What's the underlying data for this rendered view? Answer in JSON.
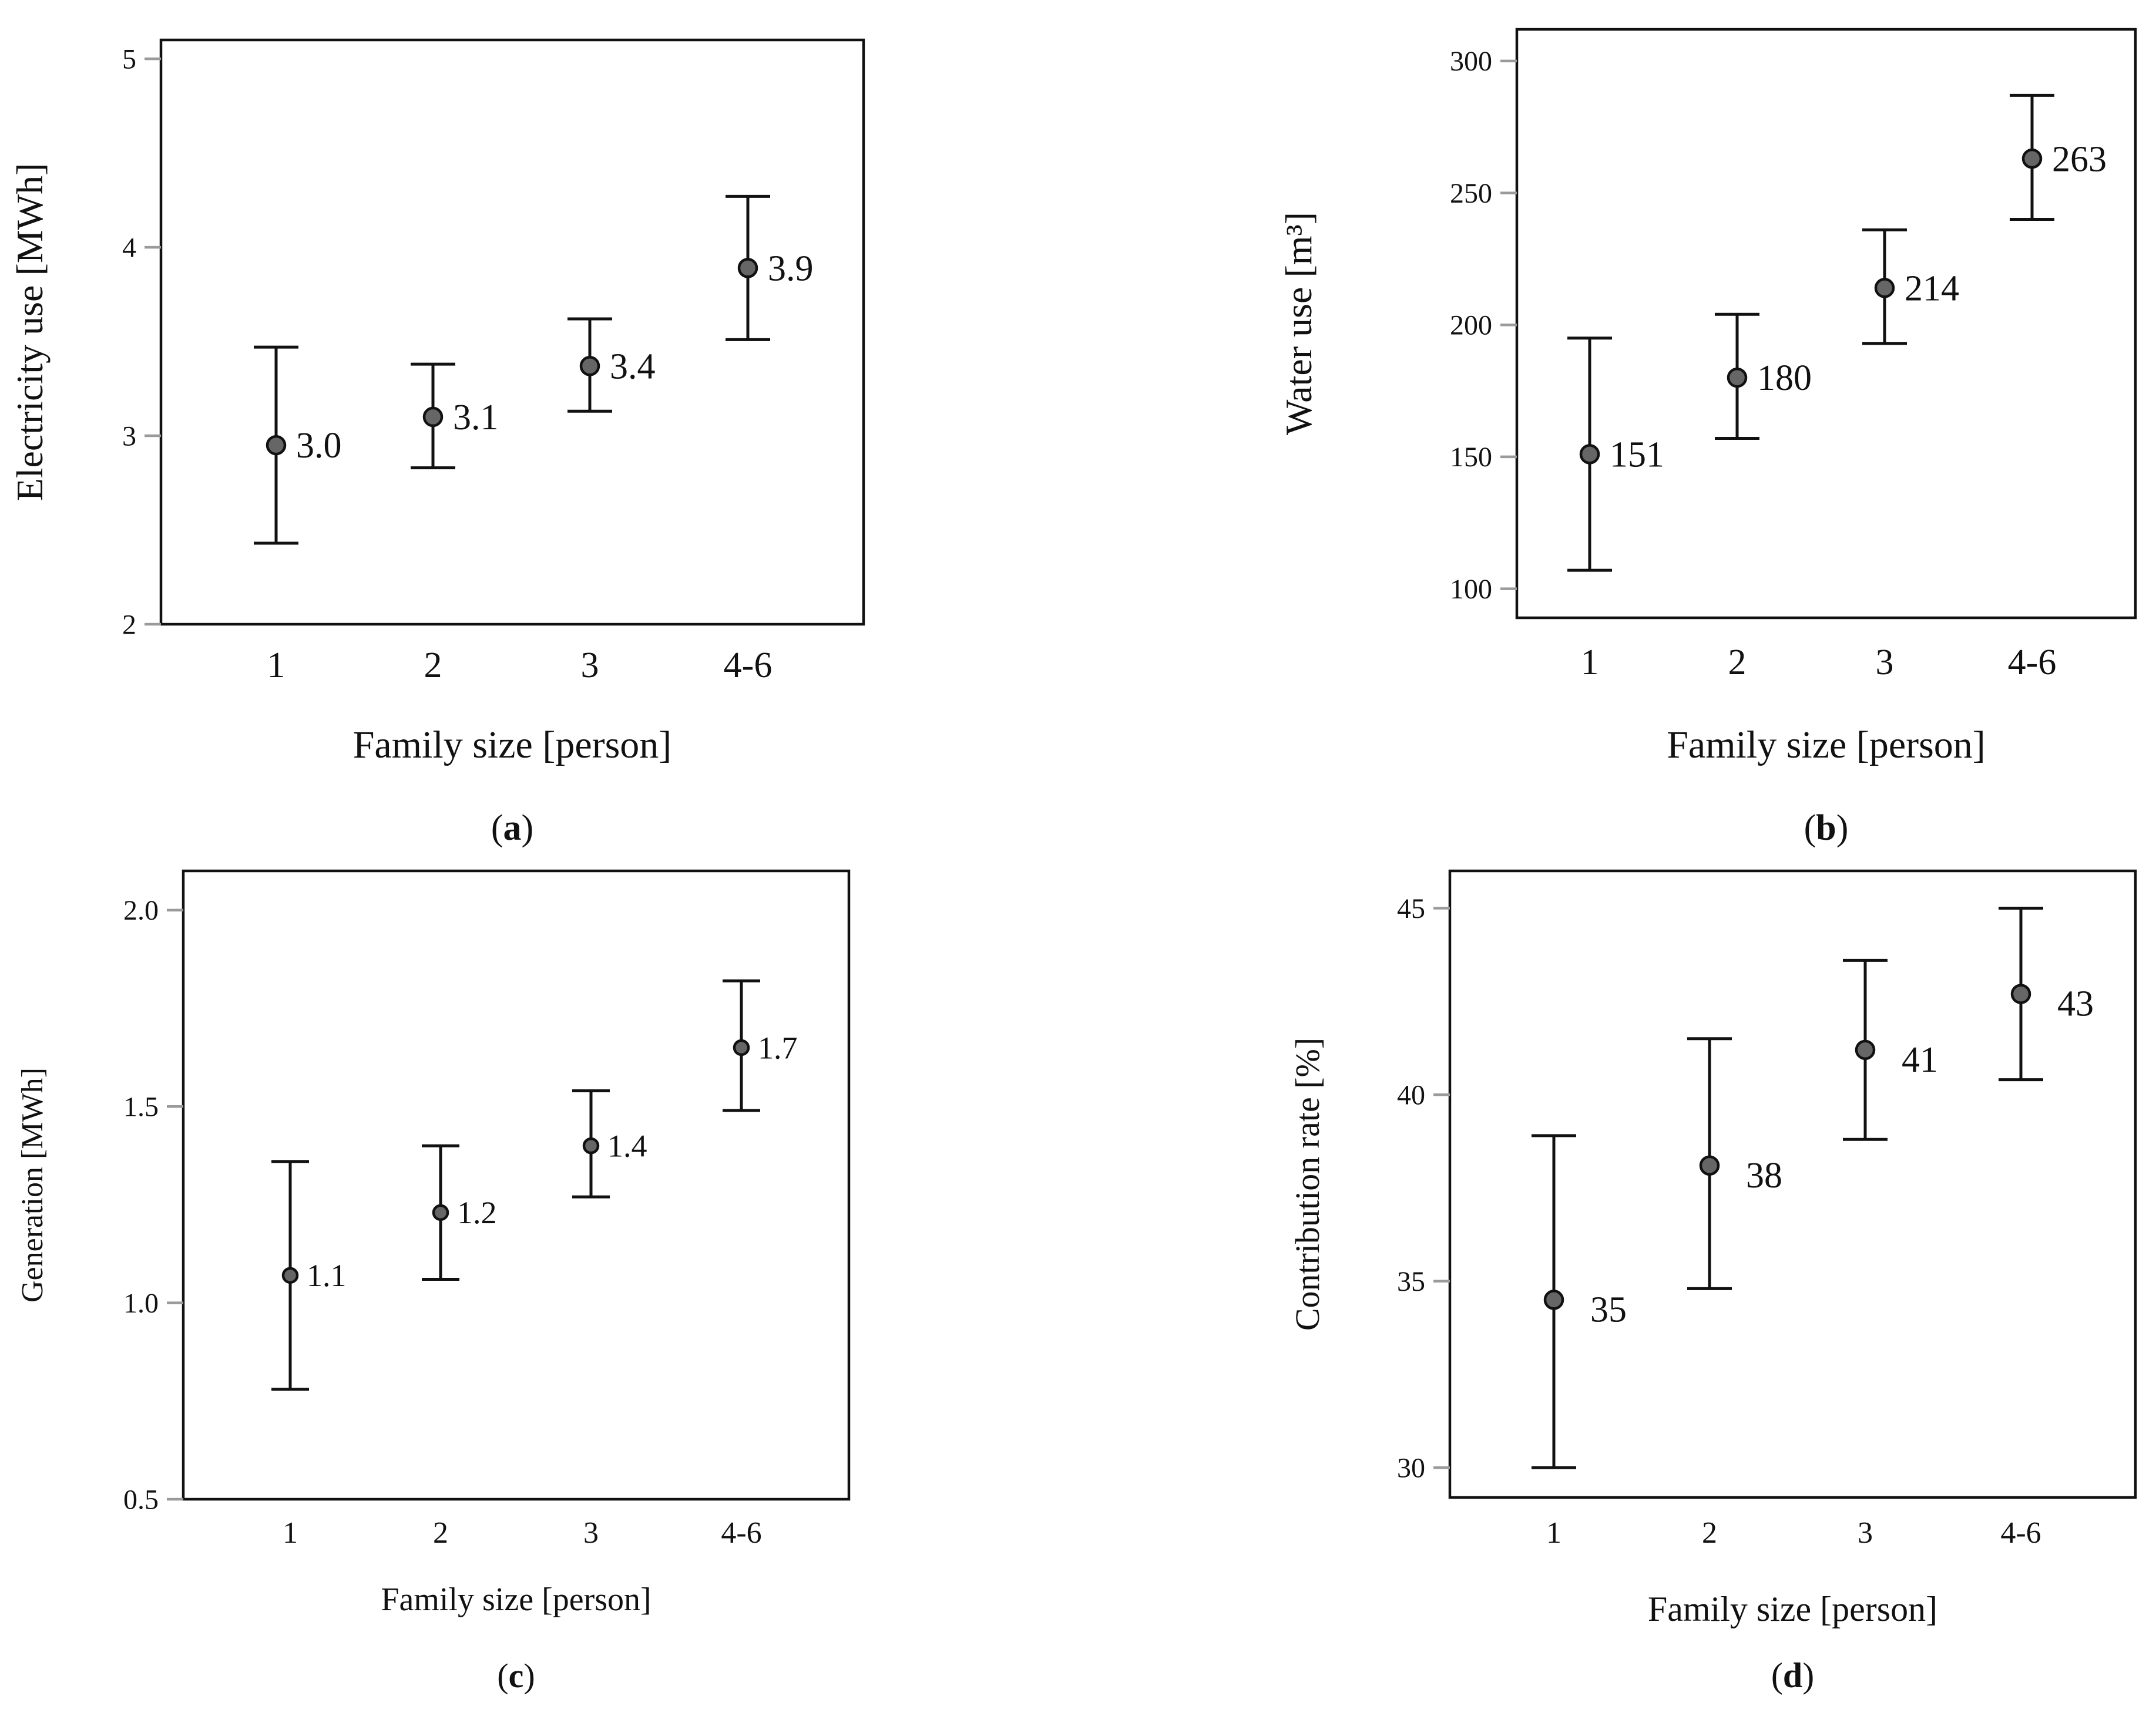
{
  "figure": {
    "colors": {
      "axis": "#111111",
      "tick": "#9a9a9a",
      "marker": "#666666",
      "background": "#ffffff"
    }
  },
  "chart_data": [
    {
      "panel": "a",
      "caption": "(a)",
      "type": "scatter",
      "subtype": "error-bar",
      "title": "",
      "xlabel": "Family size [person]",
      "ylabel": "Electricity use [MWh]",
      "categories": [
        "1",
        "2",
        "3",
        "4-6"
      ],
      "values": [
        2.95,
        3.1,
        3.37,
        3.89
      ],
      "lower": [
        2.43,
        2.83,
        3.13,
        3.51
      ],
      "upper": [
        3.47,
        3.38,
        3.62,
        4.27
      ],
      "data_labels": [
        "3.0",
        "3.1",
        "3.4",
        "3.9"
      ],
      "ylim": [
        2,
        5.1
      ],
      "yticks": [
        2,
        3,
        4,
        5
      ],
      "ytick_labels": [
        "2",
        "3",
        "4",
        "5"
      ]
    },
    {
      "panel": "b",
      "caption": "(b)",
      "type": "scatter",
      "subtype": "error-bar",
      "title": "",
      "xlabel": "Family size [person]",
      "ylabel": "Water use [m³]",
      "categories": [
        "1",
        "2",
        "3",
        "4-6"
      ],
      "values": [
        151,
        180,
        214,
        263
      ],
      "lower": [
        107,
        157,
        193,
        240
      ],
      "upper": [
        195,
        204,
        236,
        287
      ],
      "data_labels": [
        "151",
        "180",
        "214",
        "263"
      ],
      "ylim": [
        89,
        312
      ],
      "yticks": [
        100,
        150,
        200,
        250,
        300
      ],
      "ytick_labels": [
        "100",
        "150",
        "200",
        "250",
        "300"
      ]
    },
    {
      "panel": "c",
      "caption": "(c)",
      "type": "scatter",
      "subtype": "error-bar",
      "title": "",
      "xlabel": "Family size [person]",
      "ylabel": "Generation [MWh]",
      "categories": [
        "1",
        "2",
        "3",
        "4-6"
      ],
      "values": [
        1.07,
        1.23,
        1.4,
        1.65
      ],
      "lower": [
        0.78,
        1.06,
        1.27,
        1.49
      ],
      "upper": [
        1.36,
        1.4,
        1.54,
        1.82
      ],
      "data_labels": [
        "1.1",
        "1.2",
        "1.4",
        "1.7"
      ],
      "ylim": [
        0.5,
        2.1
      ],
      "yticks": [
        0.5,
        1.0,
        1.5,
        2.0
      ],
      "ytick_labels": [
        "0.5",
        "1.0",
        "1.5",
        "2.0"
      ]
    },
    {
      "panel": "d",
      "caption": "(d)",
      "type": "scatter",
      "subtype": "error-bar",
      "title": "",
      "xlabel": "Family size [person]",
      "ylabel": "Contribution rate [%]",
      "categories": [
        "1",
        "2",
        "3",
        "4-6"
      ],
      "values": [
        34.5,
        38.1,
        41.2,
        42.7
      ],
      "lower": [
        30.0,
        34.8,
        38.8,
        40.4
      ],
      "upper": [
        38.9,
        41.5,
        43.6,
        45.0
      ],
      "data_labels": [
        "35",
        "38",
        "41",
        "43"
      ],
      "ylim": [
        29.2,
        46.0
      ],
      "yticks": [
        30,
        35,
        40,
        45
      ],
      "ytick_labels": [
        "30",
        "35",
        "40",
        "45"
      ]
    }
  ]
}
